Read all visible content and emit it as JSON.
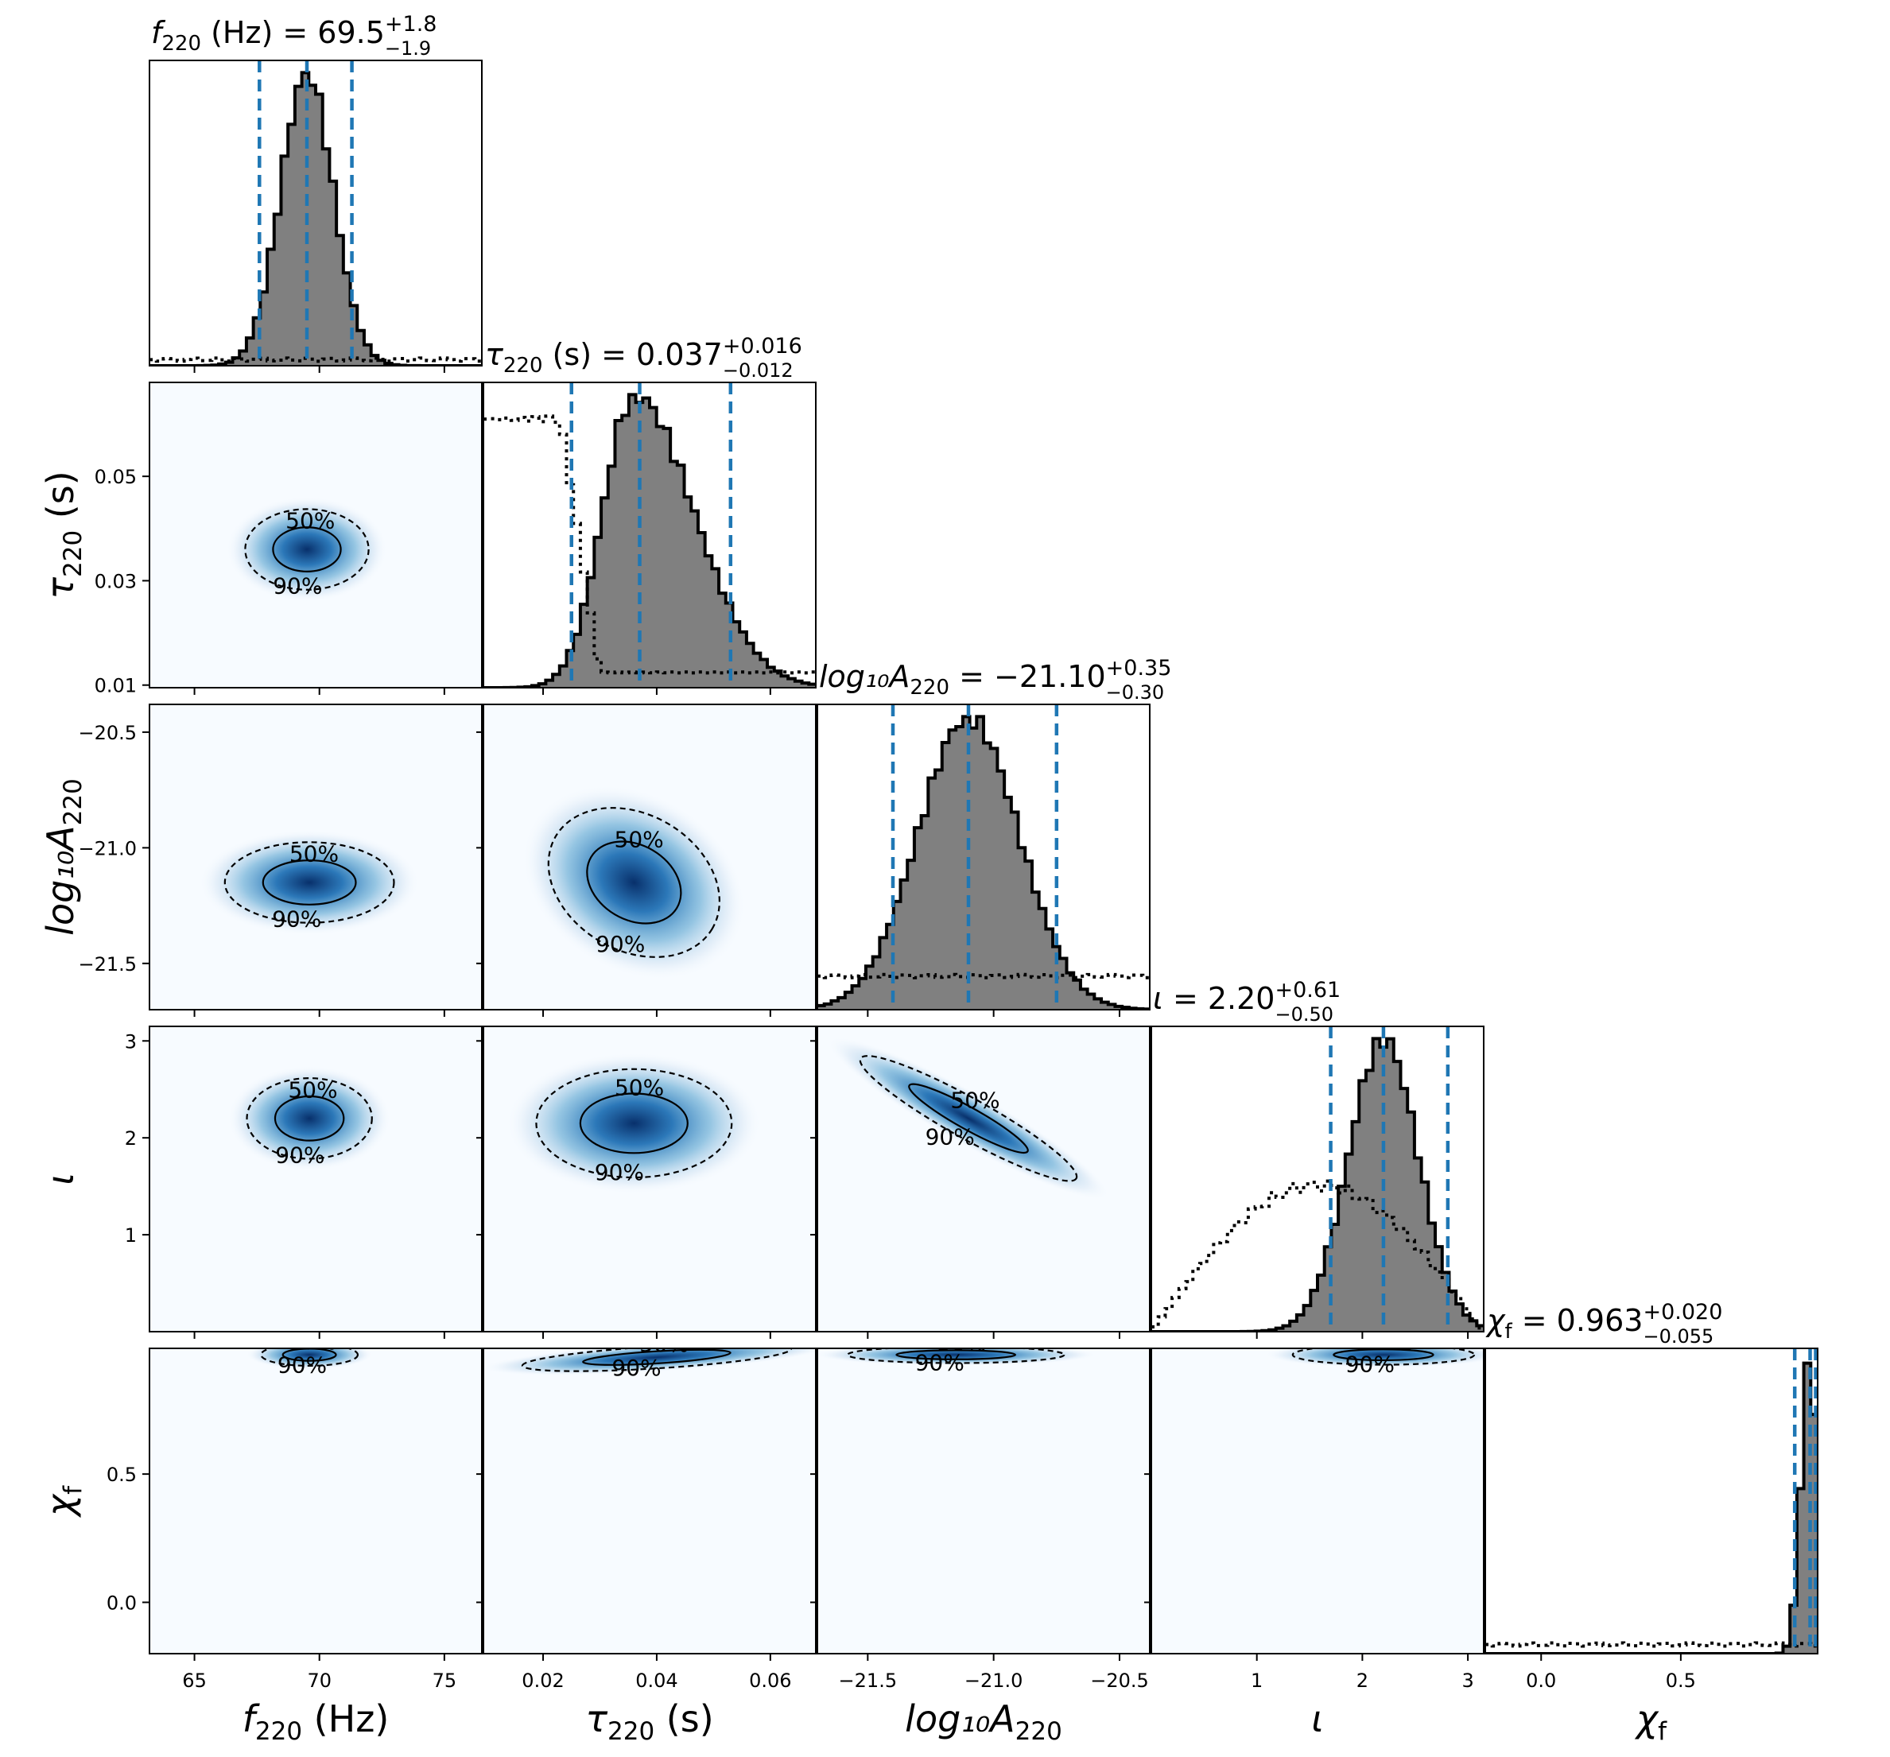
{
  "chart_data": {
    "type": "corner",
    "parameters": [
      {
        "key": "f220",
        "title": {
          "sym": "f",
          "sub": "220",
          "rest": " (Hz) = 69.5",
          "up": "+1.8",
          "lo": "−1.9"
        },
        "xlabel": {
          "sym": "f",
          "sub": "220",
          "rest": " (Hz)"
        },
        "ylabel": null,
        "range": [
          63.2,
          76.5
        ],
        "ticks": [
          65,
          70,
          75
        ],
        "tick_labels": [
          "65",
          "70",
          "75"
        ],
        "median": 69.5,
        "lower": 67.6,
        "upper": 71.3,
        "posterior": {
          "shape": "gauss",
          "center": 69.5,
          "sigma": 1.05
        },
        "prior_level": 0.02
      },
      {
        "key": "tau220",
        "title": {
          "sym": "τ",
          "sub": "220",
          "rest": " (s) = 0.037",
          "up": "+0.016",
          "lo": "−0.012"
        },
        "xlabel": {
          "sym": "τ",
          "sub": "220",
          "rest": " (s)"
        },
        "ylabel": {
          "sym": "τ",
          "sub": "220",
          "rest": " (s)"
        },
        "range": [
          0.0095,
          0.068
        ],
        "ticks": [
          0.02,
          0.04,
          0.06
        ],
        "tick_labels": [
          "0.02",
          "0.04",
          "0.06"
        ],
        "yticks": [
          0.01,
          0.03,
          0.05
        ],
        "ytick_labels": [
          "0.01",
          "0.03",
          "0.05"
        ],
        "median": 0.037,
        "lower": 0.025,
        "upper": 0.053,
        "posterior": {
          "shape": "skewgauss",
          "center": 0.036,
          "sigma_left": 0.0055,
          "sigma_right": 0.0105
        },
        "prior_step": {
          "x_high_end": 0.023,
          "x_low_start": 0.03,
          "high": 0.88,
          "low": 0.05
        }
      },
      {
        "key": "logA220",
        "title": {
          "sym": "log₁₀A",
          "sub": "220",
          "rest": " = −21.10",
          "up": "+0.35",
          "lo": "−0.30"
        },
        "xlabel": {
          "sym": "log₁₀A",
          "sub": "220",
          "rest": ""
        },
        "ylabel": {
          "sym": "log₁₀A",
          "sub": "220",
          "rest": ""
        },
        "range": [
          -21.7,
          -20.38
        ],
        "ticks": [
          -21.5,
          -21.0,
          -20.5
        ],
        "tick_labels": [
          "−21.5",
          "−21.0",
          "−20.5"
        ],
        "median": -21.1,
        "lower": -21.4,
        "upper": -20.75,
        "posterior": {
          "shape": "gauss",
          "center": -21.1,
          "sigma": 0.2
        },
        "prior_level": 0.11
      },
      {
        "key": "iota",
        "title": {
          "sym": "ι",
          "sub": "",
          "rest": " = 2.20",
          "up": "+0.61",
          "lo": "−0.50"
        },
        "xlabel": {
          "sym": "ι",
          "sub": "",
          "rest": ""
        },
        "ylabel": {
          "sym": "ι",
          "sub": "",
          "rest": ""
        },
        "range": [
          0.0,
          3.15
        ],
        "ticks": [
          1,
          2,
          3
        ],
        "tick_labels": [
          "1",
          "2",
          "3"
        ],
        "median": 2.2,
        "lower": 1.7,
        "upper": 2.81,
        "posterior": {
          "shape": "gauss",
          "center": 2.2,
          "sigma": 0.33
        },
        "prior_sine": {
          "peak": 0.48
        }
      },
      {
        "key": "chif",
        "title": {
          "sym": "χ",
          "sub": "f",
          "rest": " = 0.963",
          "up": "+0.020",
          "lo": "−0.055"
        },
        "xlabel": {
          "sym": "χ",
          "sub": "f",
          "rest": ""
        },
        "ylabel": {
          "sym": "χ",
          "sub": "f",
          "rest": ""
        },
        "range": [
          -0.2,
          0.99
        ],
        "ticks": [
          0.0,
          0.5
        ],
        "tick_labels": [
          "0.0",
          "0.5"
        ],
        "yticks": [
          0.0,
          0.5
        ],
        "ytick_labels": [
          "0.0",
          "0.5"
        ],
        "median": 0.963,
        "lower": 0.908,
        "upper": 0.983,
        "posterior": {
          "shape": "gauss",
          "center": 0.96,
          "sigma": 0.03
        },
        "prior_level": 0.03
      }
    ],
    "iota_yticks": [
      1,
      2,
      3
    ],
    "iota_ytick_labels": [
      "1",
      "2",
      "3"
    ],
    "logA_yticks": [
      -21.5,
      -21.0,
      -20.5
    ],
    "logA_ytick_labels": [
      "−21.5",
      "−21.0",
      "−20.5"
    ],
    "contour_labels": {
      "inner": "50%",
      "outer": "90%"
    },
    "pairs": [
      {
        "row": 1,
        "col": 0,
        "cx": 69.5,
        "cy": 0.036,
        "sx": 0.75,
        "sy": 0.0055,
        "rho": 0.0
      },
      {
        "row": 2,
        "col": 0,
        "cx": 69.6,
        "cy": -21.15,
        "sx": 0.75,
        "sy": 0.17,
        "rho": 0.0
      },
      {
        "row": 2,
        "col": 1,
        "cx": 0.036,
        "cy": -21.15,
        "sx": 0.007,
        "sy": 0.15,
        "rho": -0.25
      },
      {
        "row": 3,
        "col": 0,
        "cx": 69.6,
        "cy": 2.2,
        "sx": 0.75,
        "sy": 0.3,
        "rho": 0.0
      },
      {
        "row": 3,
        "col": 1,
        "cx": 0.036,
        "cy": 2.15,
        "sx": 0.008,
        "sy": 0.26,
        "rho": 0.0
      },
      {
        "row": 3,
        "col": 2,
        "cx": -21.1,
        "cy": 2.2,
        "sx": 0.2,
        "sy": 0.3,
        "rho": -0.93
      },
      {
        "row": 4,
        "col": 0,
        "cx": 69.6,
        "cy": 0.965,
        "sx": 0.9,
        "sy": 0.02,
        "rho": 0.0
      },
      {
        "row": 4,
        "col": 1,
        "cx": 0.04,
        "cy": 0.955,
        "sx": 0.011,
        "sy": 0.025,
        "rho": 0.6
      },
      {
        "row": 4,
        "col": 2,
        "cx": -21.15,
        "cy": 0.965,
        "sx": 0.2,
        "sy": 0.015,
        "rho": 0.0
      },
      {
        "row": 4,
        "col": 3,
        "cx": 2.2,
        "cy": 0.965,
        "sx": 0.4,
        "sy": 0.018,
        "rho": 0.0
      }
    ],
    "colors": {
      "hist_fill": "#808080",
      "median_line": "#1f77b4",
      "density_high": "#08306b",
      "density_low": "#f7fbff"
    }
  }
}
